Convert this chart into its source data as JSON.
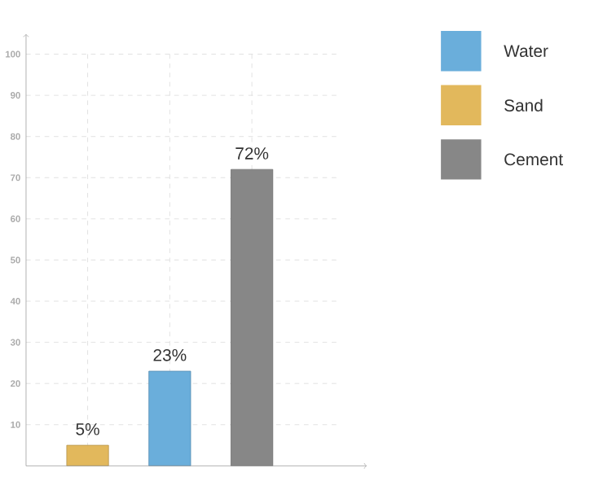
{
  "chart_data": {
    "type": "bar",
    "categories": [
      null,
      null,
      null
    ],
    "series": [
      {
        "name": "Water",
        "color": "#6aaedb",
        "values": [
          null,
          23,
          null
        ],
        "value_labels": [
          null,
          "23%",
          null
        ]
      },
      {
        "name": "Sand",
        "color": "#e2b85c",
        "values": [
          5,
          null,
          null
        ],
        "value_labels": [
          "5%",
          null,
          null
        ]
      },
      {
        "name": "Cement",
        "color": "#878787",
        "values": [
          null,
          null,
          72
        ],
        "value_labels": [
          null,
          null,
          "72%"
        ]
      }
    ],
    "ylim": [
      0,
      100
    ],
    "yticks": [
      10,
      20,
      30,
      40,
      50,
      60,
      70,
      80,
      90,
      100
    ],
    "grid": true,
    "legend": "right",
    "tick_labels": "y"
  }
}
